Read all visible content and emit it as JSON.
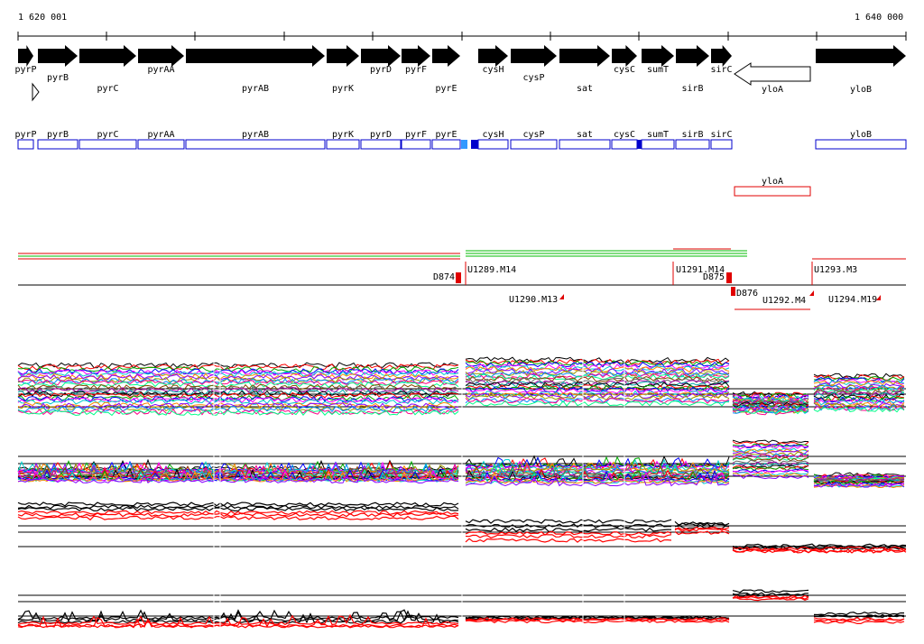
{
  "ruler": {
    "start_label": "1 620 001",
    "end_label": "1 640 000"
  },
  "colors": {
    "gene_fill": "#000000",
    "gene_box_stroke": "#0000cc",
    "gene_box_highlight": "#0000cc",
    "light_blue": "#3399ff",
    "segment_red": "#e00000",
    "segment_green": "#00bb00",
    "expr_black": "#000000",
    "expr_red": "#ff0000"
  },
  "genes": [
    {
      "name": "pyrP",
      "strand": "+",
      "start": 20,
      "end": 37
    },
    {
      "name": "pyrB",
      "strand": "+",
      "start": 42,
      "end": 86
    },
    {
      "name": "pyrC",
      "strand": "+",
      "start": 88,
      "end": 151
    },
    {
      "name": "pyrAA",
      "strand": "+",
      "start": 153,
      "end": 204
    },
    {
      "name": "pyrAB",
      "strand": "+",
      "start": 206,
      "end": 360
    },
    {
      "name": "pyrK",
      "strand": "+",
      "start": 362,
      "end": 398
    },
    {
      "name": "pyrD",
      "strand": "+",
      "start": 400,
      "end": 444
    },
    {
      "name": "pyrF",
      "strand": "+",
      "start": 445,
      "end": 477
    },
    {
      "name": "pyrE",
      "strand": "+",
      "start": 479,
      "end": 510
    },
    {
      "name": "cysH",
      "strand": "+",
      "start": 530,
      "end": 563
    },
    {
      "name": "cysP",
      "strand": "+",
      "start": 566,
      "end": 617
    },
    {
      "name": "sat",
      "strand": "+",
      "start": 620,
      "end": 676
    },
    {
      "name": "cysC",
      "strand": "+",
      "start": 678,
      "end": 706
    },
    {
      "name": "sumT",
      "strand": "+",
      "start": 711,
      "end": 747
    },
    {
      "name": "sirB",
      "strand": "+",
      "start": 749,
      "end": 786
    },
    {
      "name": "sirC",
      "strand": "+",
      "start": 788,
      "end": 811
    },
    {
      "name": "yloA",
      "strand": "-",
      "start": 814,
      "end": 898
    },
    {
      "name": "yloB",
      "strand": "+",
      "start": 904,
      "end": 1004
    }
  ],
  "segments": [
    {
      "label": "D874"
    },
    {
      "label": "U1289.M14"
    },
    {
      "label": "U1290.M13"
    },
    {
      "label": "U1291.M14"
    },
    {
      "label": "D875"
    },
    {
      "label": "D876"
    },
    {
      "label": "U1292.M4"
    },
    {
      "label": "U1293.M3"
    },
    {
      "label": "U1294.M19"
    }
  ]
}
